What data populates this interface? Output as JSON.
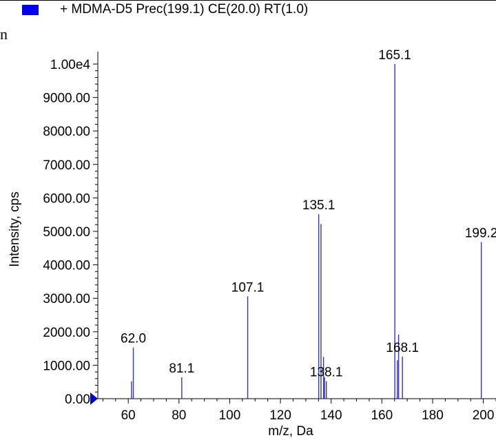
{
  "legend": {
    "label": "+ MDMA-D5 Prec(199.1) CE(20.0) RT(1.0)",
    "swatch_color": "#0000ee"
  },
  "corner_glyph": "n",
  "chart_data": {
    "type": "bar",
    "subtype": "mass-spectrum-sticks",
    "xlabel": "m/z, Da",
    "ylabel": "Intensity, cps",
    "xlim": [
      48,
      205
    ],
    "ylim": [
      0,
      10000
    ],
    "x_ticks": [
      60,
      80,
      100,
      120,
      140,
      160,
      180,
      200
    ],
    "y_ticks": [
      {
        "value": 0,
        "label": "0.00"
      },
      {
        "value": 1000,
        "label": "1000.00"
      },
      {
        "value": 2000,
        "label": "2000.00"
      },
      {
        "value": 3000,
        "label": "3000.00"
      },
      {
        "value": 4000,
        "label": "4000.00"
      },
      {
        "value": 5000,
        "label": "5000.00"
      },
      {
        "value": 6000,
        "label": "6000.00"
      },
      {
        "value": 7000,
        "label": "7000.00"
      },
      {
        "value": 8000,
        "label": "8000.00"
      },
      {
        "value": 9000,
        "label": "9000.00"
      },
      {
        "value": 10000,
        "label": "1.00e4"
      }
    ],
    "line_color": "#3333cc",
    "grid": false,
    "peaks": [
      {
        "mz": 61.3,
        "intensity": 520
      },
      {
        "mz": 62.0,
        "intensity": 1530
      },
      {
        "mz": 81.1,
        "intensity": 640
      },
      {
        "mz": 107.1,
        "intensity": 3060
      },
      {
        "mz": 135.1,
        "intensity": 5510
      },
      {
        "mz": 136.0,
        "intensity": 5220
      },
      {
        "mz": 137.0,
        "intensity": 1250
      },
      {
        "mz": 137.4,
        "intensity": 640
      },
      {
        "mz": 138.1,
        "intensity": 520
      },
      {
        "mz": 165.1,
        "intensity": 10000
      },
      {
        "mz": 166.1,
        "intensity": 1150
      },
      {
        "mz": 166.6,
        "intensity": 1920
      },
      {
        "mz": 168.1,
        "intensity": 1260
      },
      {
        "mz": 199.2,
        "intensity": 4680
      }
    ],
    "peak_labels": [
      {
        "mz": 62.0,
        "intensity": 1530,
        "text": "62.0"
      },
      {
        "mz": 81.1,
        "intensity": 640,
        "text": "81.1"
      },
      {
        "mz": 107.1,
        "intensity": 3060,
        "text": "107.1"
      },
      {
        "mz": 135.1,
        "intensity": 5510,
        "text": "135.1"
      },
      {
        "mz": 138.1,
        "intensity": 520,
        "text": "138.1"
      },
      {
        "mz": 165.1,
        "intensity": 10000,
        "text": "165.1"
      },
      {
        "mz": 168.1,
        "intensity": 1260,
        "text": "168.1"
      },
      {
        "mz": 199.2,
        "intensity": 4680,
        "text": "199.2"
      }
    ]
  }
}
